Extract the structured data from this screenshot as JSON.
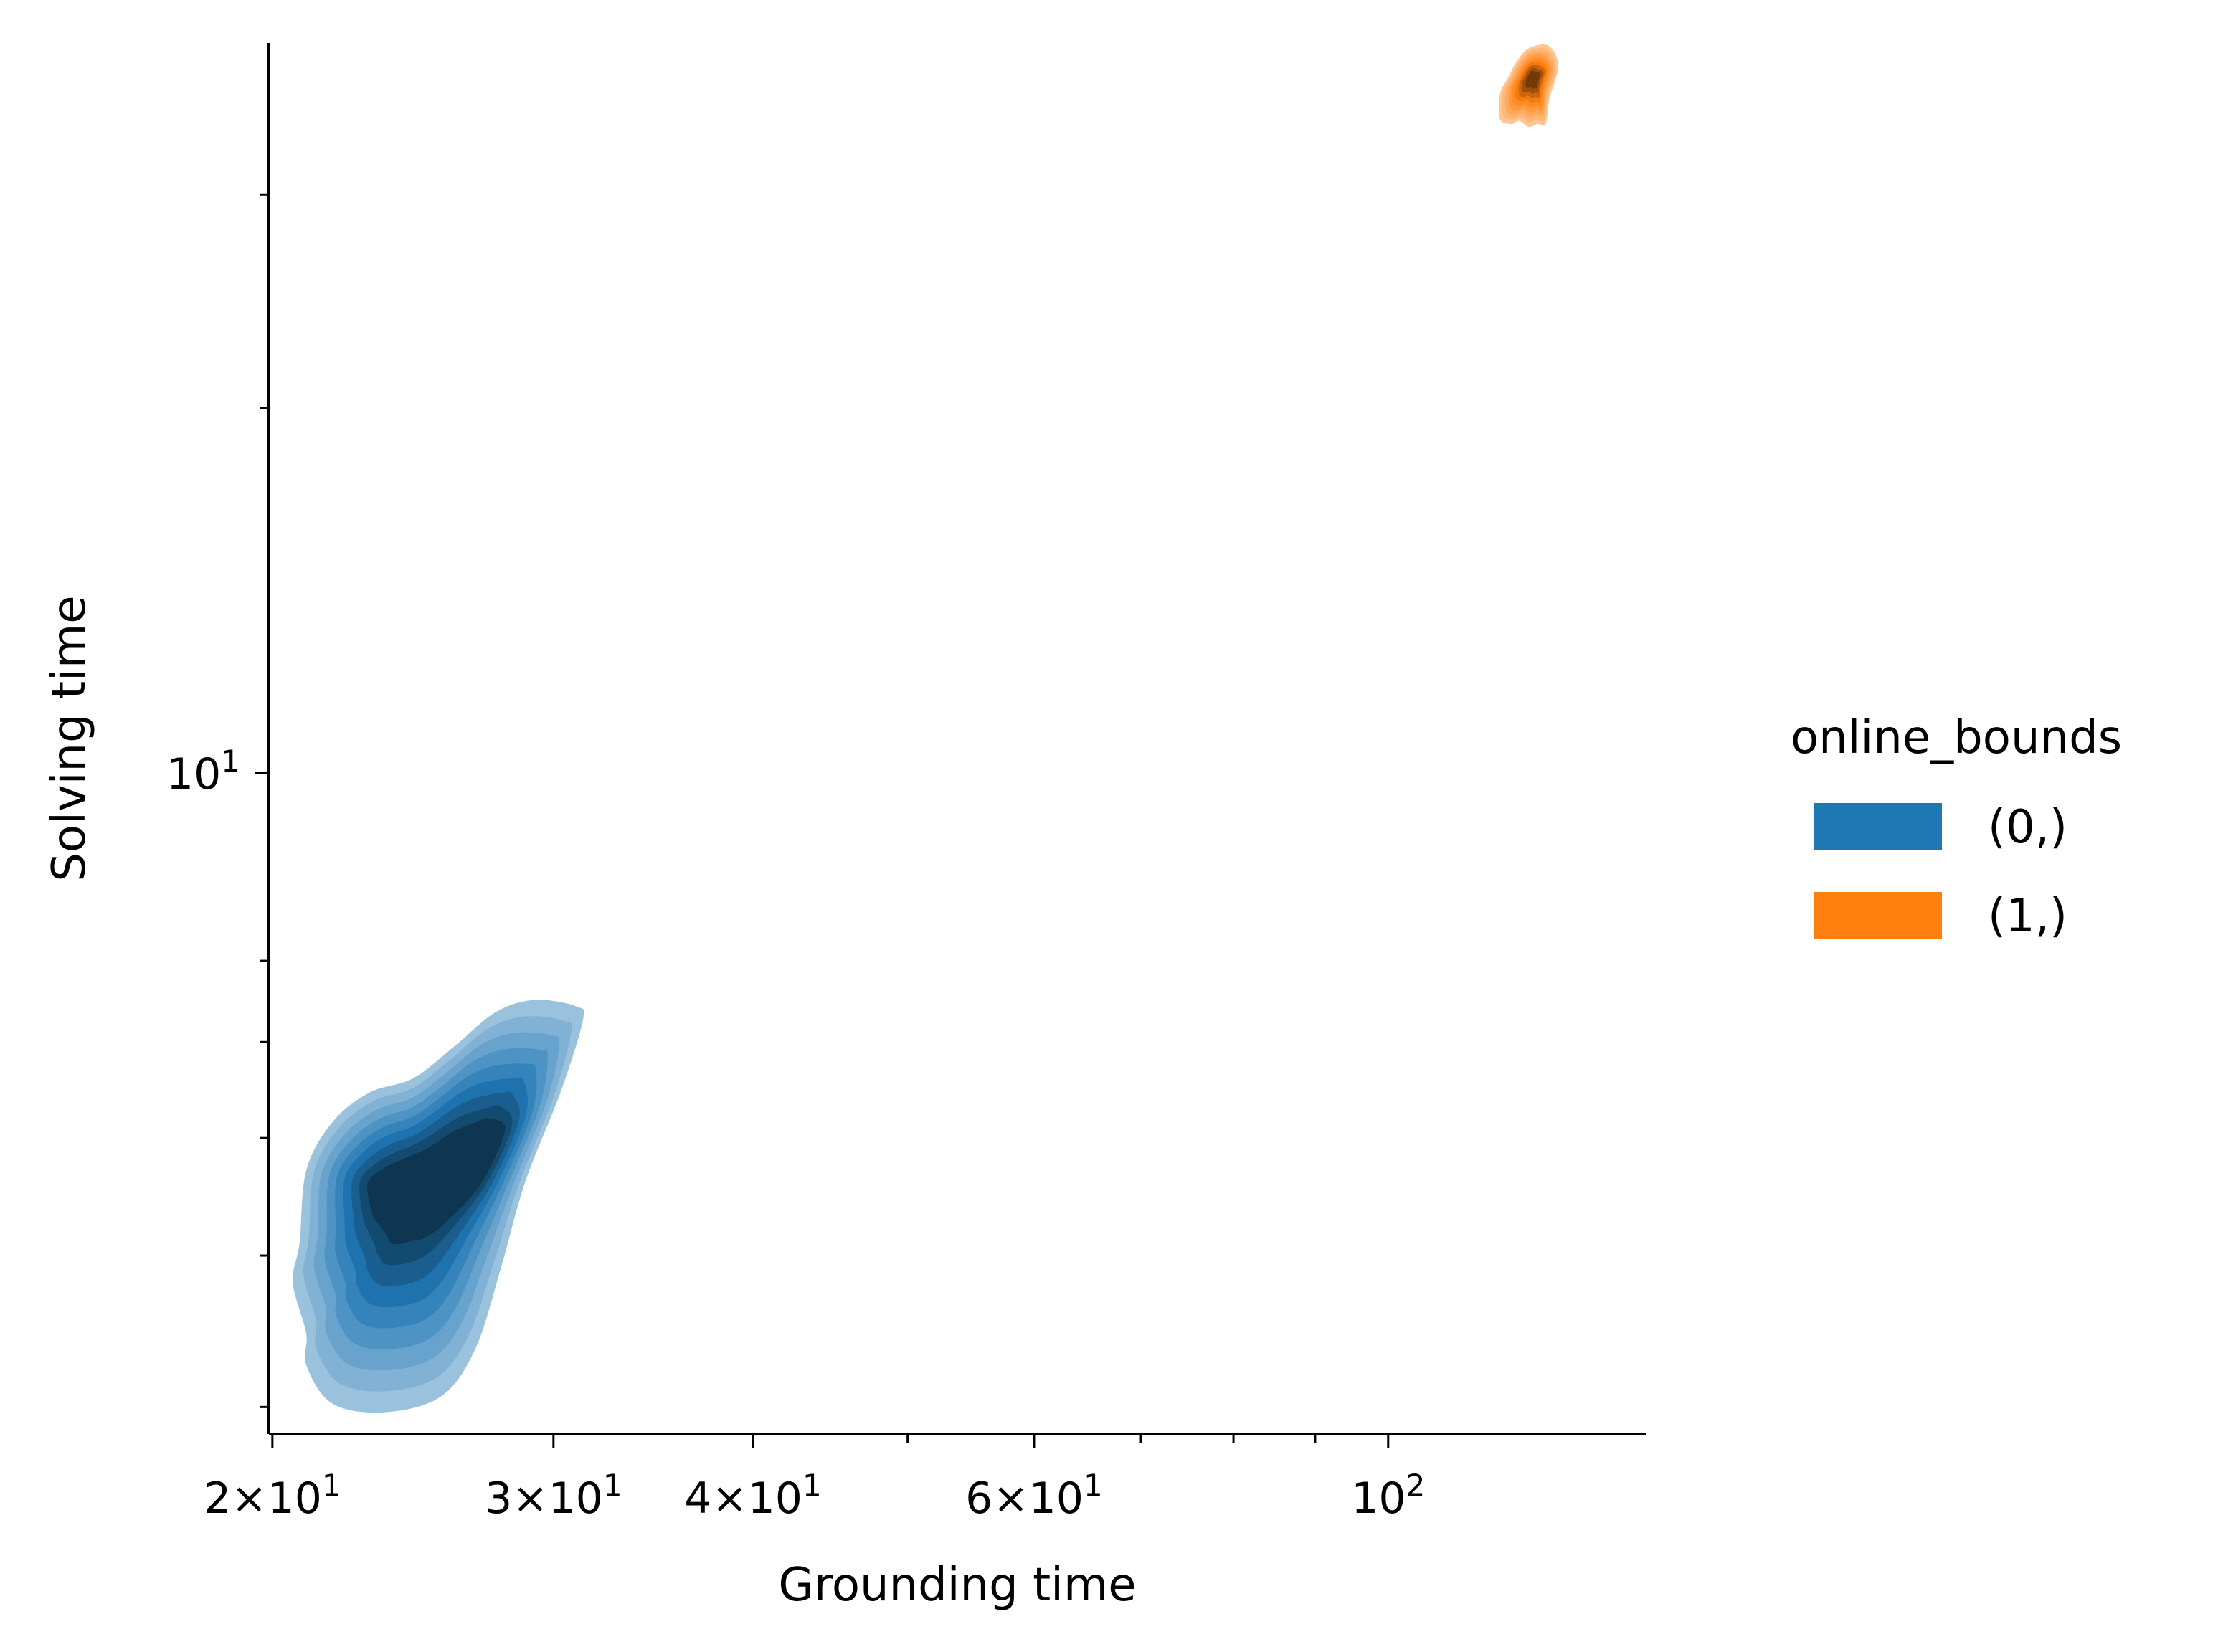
{
  "chart_data": {
    "type": "kde",
    "xlabel": "Grounding time",
    "ylabel": "Solving time",
    "x_scale": "log",
    "y_scale": "log",
    "xlim": [
      19.9,
      145
    ],
    "ylim": [
      2.85,
      40
    ],
    "grid": false,
    "x_major_ticks": [
      {
        "value": 20,
        "label": "2×10",
        "sup": "1"
      },
      {
        "value": 30,
        "label": "3×10",
        "sup": "1"
      },
      {
        "value": 40,
        "label": "4×10",
        "sup": "1"
      },
      {
        "value": 60,
        "label": "6×10",
        "sup": "1"
      },
      {
        "value": 100,
        "label": "10",
        "sup": "2"
      }
    ],
    "x_minor_ticks": [
      50,
      70,
      80,
      90
    ],
    "y_major_ticks": [
      {
        "value": 10,
        "label": "10",
        "sup": "1"
      }
    ],
    "y_minor_ticks": [
      3,
      4,
      5,
      6,
      7,
      20,
      30
    ],
    "legend": {
      "title": "online_bounds",
      "placement": "right",
      "entries": [
        {
          "label": "(0,)",
          "color": "#1f77b4"
        },
        {
          "label": "(1,)",
          "color": "#ff7f0e"
        }
      ]
    },
    "series": [
      {
        "name": "(0,)",
        "color": "#1f77b4",
        "center": [
          23.5,
          4.2
        ],
        "outer_contour": [
          [
            21.0,
            3.45
          ],
          [
            21.0,
            3.25
          ],
          [
            21.8,
            3.02
          ],
          [
            23.5,
            2.97
          ],
          [
            25.5,
            3.06
          ],
          [
            26.8,
            3.35
          ],
          [
            27.8,
            3.9
          ],
          [
            28.8,
            4.6
          ],
          [
            30.3,
            5.45
          ],
          [
            31.3,
            6.25
          ],
          [
            31.0,
            6.42
          ],
          [
            29.2,
            6.5
          ],
          [
            27.6,
            6.35
          ],
          [
            26.0,
            5.95
          ],
          [
            24.5,
            5.6
          ],
          [
            23.0,
            5.45
          ],
          [
            21.8,
            5.15
          ],
          [
            21.0,
            4.7
          ],
          [
            20.8,
            4.1
          ],
          [
            20.6,
            3.8
          ]
        ],
        "peak_contour": [
          [
            22.4,
            4.2
          ],
          [
            23.2,
            3.92
          ],
          [
            24.6,
            4.0
          ],
          [
            26.3,
            4.4
          ],
          [
            27.4,
            4.82
          ],
          [
            27.0,
            5.02
          ],
          [
            25.6,
            4.92
          ],
          [
            24.4,
            4.72
          ],
          [
            22.9,
            4.55
          ],
          [
            22.3,
            4.4
          ]
        ]
      },
      {
        "name": "(1,)",
        "color": "#ff7f0e",
        "center": [
          123,
          36.5
        ],
        "outer_contour": [
          [
            117.5,
            34.6
          ],
          [
            119.5,
            34.3
          ],
          [
            120.8,
            34.5
          ],
          [
            122.5,
            34.1
          ],
          [
            124.0,
            34.3
          ],
          [
            125.5,
            34.3
          ],
          [
            126.2,
            36.0
          ],
          [
            127.8,
            38.3
          ],
          [
            126.0,
            39.8
          ],
          [
            122.5,
            39.6
          ],
          [
            120.5,
            38.7
          ],
          [
            118.8,
            37.4
          ],
          [
            117.5,
            36.3
          ]
        ],
        "peak_contour": [
          [
            122.6,
            37.2
          ],
          [
            123.6,
            37.0
          ],
          [
            124.2,
            37.8
          ],
          [
            124.4,
            38.4
          ],
          [
            123.8,
            38.6
          ],
          [
            123.0,
            38.1
          ]
        ]
      }
    ]
  }
}
